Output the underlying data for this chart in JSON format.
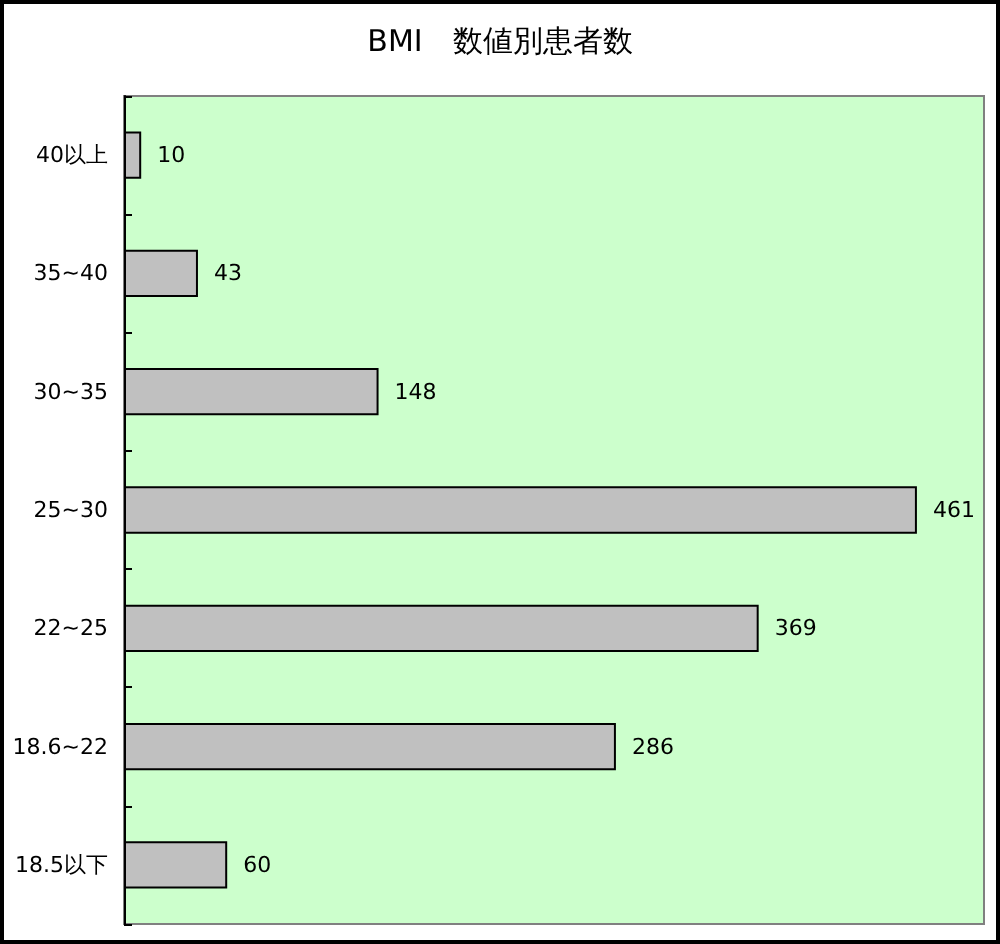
{
  "chart_data": {
    "type": "bar",
    "title": "BMI　数値別患者数",
    "orientation": "horizontal",
    "categories": [
      "40以上",
      "35~40",
      "30~35",
      "25~30",
      "22~25",
      "18.6~22",
      "18.5以下"
    ],
    "values": [
      10,
      43,
      148,
      461,
      369,
      286,
      60
    ],
    "color": "#c0c0c0",
    "data_labels": true
  }
}
